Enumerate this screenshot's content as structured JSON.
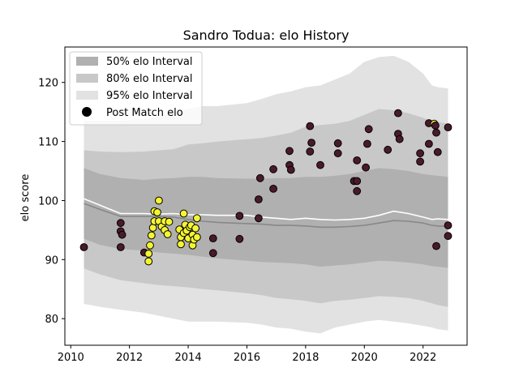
{
  "chart_data": {
    "type": "scatter",
    "title": "Sandro Todua: elo History",
    "xlabel": "",
    "ylabel": "elo score",
    "xlim": [
      2009.8,
      2023.5
    ],
    "ylim": [
      75.5,
      126
    ],
    "x_ticks": [
      2010,
      2012,
      2014,
      2016,
      2018,
      2020,
      2022
    ],
    "y_ticks": [
      80,
      90,
      100,
      110,
      120
    ],
    "grid": false,
    "legend_position": "top-left",
    "legend": [
      {
        "label": "50% elo Interval",
        "color": "#b0b0b0"
      },
      {
        "label": "80% elo Interval",
        "color": "#c8c8c8"
      },
      {
        "label": "95% elo Interval",
        "color": "#e2e2e2"
      },
      {
        "label": "Post Match elo",
        "color": "#000000"
      }
    ],
    "colors": {
      "band50": "#b0b0b0",
      "band80": "#c8c8c8",
      "band95": "#e2e2e2",
      "median_line": "#888888",
      "mean_line": "#ffffff",
      "point_dark": "#4a1a2a",
      "point_bright": "#f5f530",
      "point_edge": "#000000"
    },
    "bands": {
      "x": [
        2010.45,
        2011.0,
        2011.7,
        2012.5,
        2013.0,
        2013.5,
        2014.0,
        2014.5,
        2015.0,
        2016.0,
        2016.5,
        2017.0,
        2017.5,
        2018.0,
        2018.5,
        2019.0,
        2019.5,
        2020.0,
        2020.5,
        2021.0,
        2021.5,
        2022.0,
        2022.3,
        2022.5,
        2022.85
      ],
      "p95_upper": [
        113.5,
        113.5,
        113.5,
        113.8,
        114.2,
        115,
        115.5,
        116,
        116,
        116.5,
        117.2,
        118,
        118.5,
        119.2,
        119.5,
        120.5,
        121.5,
        123.5,
        124.3,
        124.5,
        123.5,
        121.5,
        119.5,
        119.2,
        119
      ],
      "p80_upper": [
        108.5,
        108.3,
        108.2,
        108.3,
        108.5,
        108.7,
        109.5,
        109.7,
        110,
        110.4,
        110.6,
        111,
        111.5,
        112.5,
        112.8,
        113,
        113.5,
        114.5,
        115.5,
        115.3,
        114.8,
        114,
        113.5,
        113.3,
        113
      ],
      "p50_upper": [
        105.5,
        104.5,
        103.8,
        103.5,
        103.7,
        103.8,
        104,
        104,
        103.8,
        103.7,
        103.7,
        103.8,
        103.8,
        104,
        104,
        104.2,
        104.5,
        105,
        105.5,
        105.3,
        105,
        104.5,
        104.3,
        104.2,
        104
      ],
      "median": [
        99.5,
        98.5,
        97.3,
        97.3,
        97.3,
        97.2,
        96.8,
        96.5,
        96.3,
        96.1,
        96,
        95.8,
        95.8,
        95.7,
        95.5,
        95.5,
        95.6,
        95.8,
        96.2,
        96.6,
        96.5,
        96.2,
        95.8,
        95.7,
        95.6
      ],
      "mean": [
        100.3,
        99.2,
        97.8,
        97.8,
        97.7,
        97.8,
        97.6,
        97.6,
        97.5,
        97.5,
        97.2,
        97,
        96.8,
        97,
        96.8,
        96.7,
        96.8,
        97,
        97.5,
        98.2,
        97.8,
        97.2,
        96.8,
        96.9,
        96.8
      ],
      "p50_lower": [
        93.5,
        92.5,
        91.8,
        91.5,
        91.2,
        91,
        90.8,
        90.5,
        90.2,
        89.8,
        89.6,
        89.5,
        89.4,
        89.2,
        88.8,
        89,
        89.2,
        89.5,
        89.8,
        89.7,
        89.5,
        89.2,
        88.9,
        88.8,
        88.6
      ],
      "p80_lower": [
        88.5,
        87.5,
        86.5,
        86,
        85.7,
        85.5,
        85.3,
        85,
        84.8,
        84.3,
        84,
        83.5,
        83.3,
        83,
        82.6,
        83,
        83.2,
        83.5,
        83.8,
        83.7,
        83.5,
        83,
        82.6,
        82.3,
        82
      ],
      "p95_lower": [
        82.5,
        82,
        81.5,
        81,
        80.5,
        80,
        79.5,
        79.5,
        79.5,
        79.3,
        79,
        78.5,
        78.3,
        77.8,
        77.5,
        78.5,
        79,
        79.5,
        79.8,
        79.5,
        79.2,
        78.8,
        78.5,
        78.2,
        78
      ]
    },
    "series": [
      {
        "name": "Post Match elo",
        "points": [
          {
            "x": 2010.45,
            "y": 92.1,
            "c": "d"
          },
          {
            "x": 2011.7,
            "y": 96.2,
            "c": "d"
          },
          {
            "x": 2011.7,
            "y": 94.8,
            "c": "d"
          },
          {
            "x": 2011.75,
            "y": 94.2,
            "c": "d"
          },
          {
            "x": 2011.7,
            "y": 92.1,
            "c": "d"
          },
          {
            "x": 2012.5,
            "y": 91.2,
            "c": "d"
          },
          {
            "x": 2012.65,
            "y": 89.7,
            "c": "b"
          },
          {
            "x": 2012.65,
            "y": 91.0,
            "c": "b"
          },
          {
            "x": 2012.7,
            "y": 92.4,
            "c": "b"
          },
          {
            "x": 2012.75,
            "y": 94.1,
            "c": "b"
          },
          {
            "x": 2012.8,
            "y": 95.4,
            "c": "b"
          },
          {
            "x": 2012.85,
            "y": 96.5,
            "c": "b"
          },
          {
            "x": 2012.85,
            "y": 98.2,
            "c": "b"
          },
          {
            "x": 2012.95,
            "y": 98.0,
            "c": "b"
          },
          {
            "x": 2013.0,
            "y": 100.0,
            "c": "b"
          },
          {
            "x": 2013.0,
            "y": 96.5,
            "c": "b"
          },
          {
            "x": 2013.1,
            "y": 95.6,
            "c": "b"
          },
          {
            "x": 2013.2,
            "y": 96.5,
            "c": "b"
          },
          {
            "x": 2013.2,
            "y": 95.0,
            "c": "b"
          },
          {
            "x": 2013.3,
            "y": 94.3,
            "c": "b"
          },
          {
            "x": 2013.35,
            "y": 96.4,
            "c": "b"
          },
          {
            "x": 2013.7,
            "y": 95.1,
            "c": "b"
          },
          {
            "x": 2013.75,
            "y": 93.8,
            "c": "b"
          },
          {
            "x": 2013.75,
            "y": 92.6,
            "c": "b"
          },
          {
            "x": 2013.85,
            "y": 94.5,
            "c": "b"
          },
          {
            "x": 2013.85,
            "y": 97.8,
            "c": "b"
          },
          {
            "x": 2013.9,
            "y": 95.9,
            "c": "b"
          },
          {
            "x": 2013.95,
            "y": 94.9,
            "c": "b"
          },
          {
            "x": 2014.0,
            "y": 93.6,
            "c": "b"
          },
          {
            "x": 2014.05,
            "y": 95.5,
            "c": "b"
          },
          {
            "x": 2014.1,
            "y": 95.8,
            "c": "b"
          },
          {
            "x": 2014.15,
            "y": 94.2,
            "c": "b"
          },
          {
            "x": 2014.15,
            "y": 92.4,
            "c": "b"
          },
          {
            "x": 2014.2,
            "y": 93.4,
            "c": "b"
          },
          {
            "x": 2014.25,
            "y": 95.3,
            "c": "b"
          },
          {
            "x": 2014.3,
            "y": 97.0,
            "c": "b"
          },
          {
            "x": 2014.3,
            "y": 93.8,
            "c": "b"
          },
          {
            "x": 2014.85,
            "y": 93.6,
            "c": "d"
          },
          {
            "x": 2014.85,
            "y": 91.1,
            "c": "d"
          },
          {
            "x": 2015.75,
            "y": 97.4,
            "c": "d"
          },
          {
            "x": 2015.75,
            "y": 93.5,
            "c": "d"
          },
          {
            "x": 2016.45,
            "y": 103.8,
            "c": "d"
          },
          {
            "x": 2016.4,
            "y": 100.2,
            "c": "d"
          },
          {
            "x": 2016.4,
            "y": 97.0,
            "c": "d"
          },
          {
            "x": 2016.9,
            "y": 105.3,
            "c": "d"
          },
          {
            "x": 2016.9,
            "y": 102.0,
            "c": "d"
          },
          {
            "x": 2017.45,
            "y": 108.4,
            "c": "d"
          },
          {
            "x": 2017.45,
            "y": 106.0,
            "c": "d"
          },
          {
            "x": 2017.5,
            "y": 105.2,
            "c": "d"
          },
          {
            "x": 2018.15,
            "y": 112.6,
            "c": "d"
          },
          {
            "x": 2018.2,
            "y": 109.8,
            "c": "d"
          },
          {
            "x": 2018.15,
            "y": 108.3,
            "c": "d"
          },
          {
            "x": 2018.5,
            "y": 106.0,
            "c": "d"
          },
          {
            "x": 2019.1,
            "y": 109.7,
            "c": "d"
          },
          {
            "x": 2019.1,
            "y": 108.0,
            "c": "d"
          },
          {
            "x": 2019.65,
            "y": 103.3,
            "c": "d"
          },
          {
            "x": 2019.75,
            "y": 106.8,
            "c": "d"
          },
          {
            "x": 2019.75,
            "y": 103.3,
            "c": "d"
          },
          {
            "x": 2019.75,
            "y": 101.6,
            "c": "d"
          },
          {
            "x": 2020.1,
            "y": 109.6,
            "c": "d"
          },
          {
            "x": 2020.15,
            "y": 112.1,
            "c": "d"
          },
          {
            "x": 2020.05,
            "y": 105.6,
            "c": "d"
          },
          {
            "x": 2020.8,
            "y": 108.6,
            "c": "d"
          },
          {
            "x": 2021.15,
            "y": 114.8,
            "c": "d"
          },
          {
            "x": 2021.15,
            "y": 111.3,
            "c": "d"
          },
          {
            "x": 2021.2,
            "y": 110.4,
            "c": "d"
          },
          {
            "x": 2021.9,
            "y": 108.0,
            "c": "d"
          },
          {
            "x": 2021.9,
            "y": 106.6,
            "c": "d"
          },
          {
            "x": 2022.2,
            "y": 113.1,
            "c": "d"
          },
          {
            "x": 2022.2,
            "y": 109.6,
            "c": "d"
          },
          {
            "x": 2022.38,
            "y": 113.0,
            "c": "b"
          },
          {
            "x": 2022.42,
            "y": 112.7,
            "c": "d"
          },
          {
            "x": 2022.45,
            "y": 111.5,
            "c": "d"
          },
          {
            "x": 2022.5,
            "y": 108.2,
            "c": "d"
          },
          {
            "x": 2022.45,
            "y": 92.3,
            "c": "d"
          },
          {
            "x": 2022.85,
            "y": 112.4,
            "c": "d"
          },
          {
            "x": 2022.85,
            "y": 95.8,
            "c": "d"
          },
          {
            "x": 2022.85,
            "y": 94.0,
            "c": "d"
          }
        ]
      }
    ]
  }
}
